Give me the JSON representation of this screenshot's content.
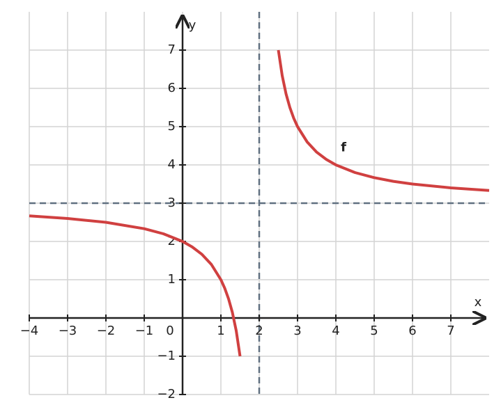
{
  "chart_data": {
    "type": "line",
    "x_label": "x",
    "y_label": "y",
    "xlim": [
      -4,
      8
    ],
    "ylim": [
      -2,
      8
    ],
    "xticks": [
      {
        "value": -4,
        "label": "−4"
      },
      {
        "value": -3,
        "label": "−3"
      },
      {
        "value": -2,
        "label": "−2"
      },
      {
        "value": -1,
        "label": "−1"
      },
      0,
      1,
      2,
      3,
      4,
      5,
      6,
      7
    ],
    "yticks": [
      {
        "value": -2,
        "label": "−2"
      },
      {
        "value": -1,
        "label": "−1"
      },
      1,
      2,
      3,
      4,
      5,
      6,
      7
    ],
    "grid": true,
    "asymptotes": {
      "x": 2,
      "y": 3
    },
    "series": [
      {
        "name": "f",
        "color": "#d04040",
        "x": [
          -4,
          -3,
          -2,
          -1,
          -0.5,
          0,
          0.25,
          0.5,
          0.75,
          1,
          1.1,
          1.2,
          1.3,
          1.4,
          1.5,
          null,
          2.5,
          2.6,
          2.7,
          2.8,
          2.9,
          3,
          3.25,
          3.5,
          3.75,
          4,
          4.5,
          5,
          5.5,
          6,
          7,
          8
        ],
        "values": [
          2.667,
          2.6,
          2.5,
          2.333,
          2.2,
          2,
          1.857,
          1.667,
          1.4,
          1,
          0.778,
          0.5,
          0.143,
          -0.333,
          -1,
          null,
          7,
          6.333,
          5.857,
          5.5,
          5.222,
          5,
          4.6,
          4.333,
          4.143,
          4,
          3.8,
          3.667,
          3.571,
          3.5,
          3.4,
          3.333
        ]
      }
    ]
  }
}
